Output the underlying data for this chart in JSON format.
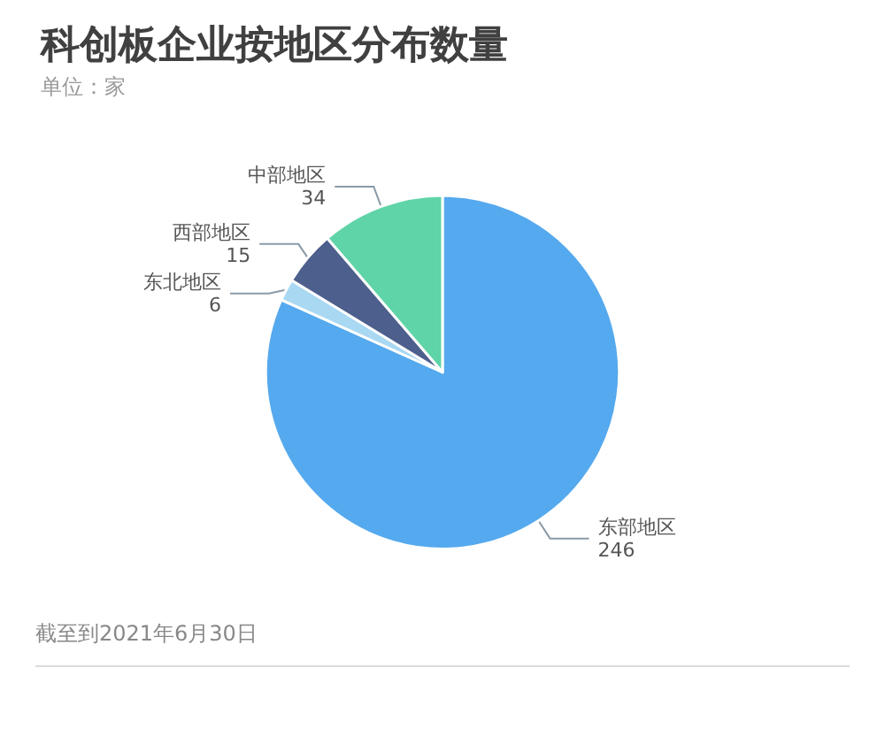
{
  "chart_data": {
    "type": "pie",
    "title": "科创板企业按地区分布数量",
    "subtitle": "单位：家",
    "categories": [
      "东部地区",
      "东北地区",
      "西部地区",
      "中部地区"
    ],
    "values": [
      246,
      6,
      15,
      34
    ],
    "colors": [
      "#55a9ee",
      "#a9d8f2",
      "#4d5f8c",
      "#5fd4a8"
    ],
    "data_labels": true,
    "annotations": [
      "截至到2021年6月30日"
    ]
  }
}
